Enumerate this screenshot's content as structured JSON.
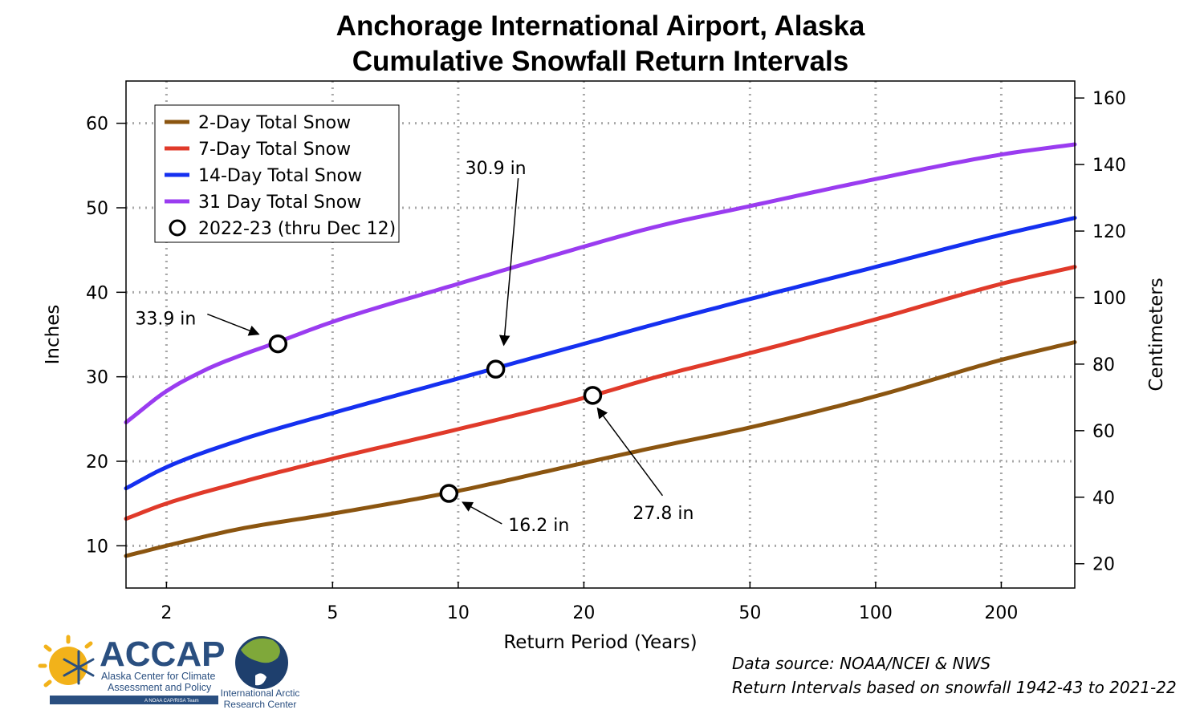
{
  "chart_data": {
    "type": "line",
    "title": "Anchorage International Airport, Alaska",
    "subtitle": "Cumulative Snowfall Return Intervals",
    "xlabel": "Return Period (Years)",
    "ylabel": "Inches",
    "ylabel_right": "Centimeters",
    "x_scale": "log",
    "xlim": [
      1.6,
      300
    ],
    "ylim": [
      5,
      65
    ],
    "x_ticks": [
      2,
      5,
      10,
      20,
      50,
      100,
      200
    ],
    "y_ticks": [
      10,
      20,
      30,
      40,
      50,
      60
    ],
    "y2_ticks": [
      20,
      40,
      60,
      80,
      100,
      120,
      140,
      160
    ],
    "grid": true,
    "legend_position": "top-left",
    "series": [
      {
        "name": "2-Day Total Snow",
        "color": "#8B5510",
        "x": [
          1.6,
          2,
          3,
          5,
          10,
          20,
          30,
          50,
          100,
          200,
          300
        ],
        "y": [
          8.8,
          10,
          12,
          13.8,
          16.5,
          19.8,
          21.7,
          24.0,
          27.7,
          32.0,
          34.1
        ]
      },
      {
        "name": "7-Day Total Snow",
        "color": "#E03A2A",
        "x": [
          1.6,
          2,
          3,
          5,
          10,
          20,
          30,
          50,
          100,
          200,
          300
        ],
        "y": [
          13.2,
          15.0,
          17.5,
          20.3,
          23.8,
          27.5,
          30.0,
          32.8,
          36.8,
          41.0,
          43.0
        ]
      },
      {
        "name": "14-Day Total Snow",
        "color": "#1530F0",
        "x": [
          1.6,
          2,
          3,
          5,
          10,
          20,
          30,
          50,
          100,
          200,
          300
        ],
        "y": [
          16.8,
          19.3,
          22.5,
          25.7,
          29.8,
          33.9,
          36.3,
          39.2,
          43.0,
          46.8,
          48.8
        ]
      },
      {
        "name": "31 Day Total Snow",
        "color": "#9A3CF0",
        "x": [
          1.6,
          2,
          2.5,
          3,
          3.6,
          5,
          10,
          20,
          30,
          50,
          100,
          200,
          300
        ],
        "y": [
          24.6,
          28.3,
          30.9,
          32.5,
          33.9,
          36.5,
          41.0,
          45.4,
          47.8,
          50.2,
          53.4,
          56.3,
          57.5
        ]
      }
    ],
    "observations": {
      "name": "2022-23 (thru Dec 12)",
      "points": [
        {
          "x": 3.7,
          "y": 33.9,
          "label": "33.9 in"
        },
        {
          "x": 12.3,
          "y": 30.9,
          "label": "30.9 in"
        },
        {
          "x": 21,
          "y": 27.8,
          "label": "27.8 in"
        },
        {
          "x": 9.5,
          "y": 16.2,
          "label": "16.2 in"
        }
      ]
    }
  },
  "footer": {
    "source_line1": "Data source: NOAA/NCEI & NWS",
    "source_line2": "Return Intervals based on snowfall 1942-43 to 2021-22"
  },
  "logos": {
    "accap_name": "ACCAP",
    "accap_line1": "Alaska Center for Climate",
    "accap_line2": "Assessment and Policy",
    "accap_tag": "A NOAA CAP/RISA Team",
    "iarc_line1": "International Arctic",
    "iarc_line2": "Research Center"
  }
}
